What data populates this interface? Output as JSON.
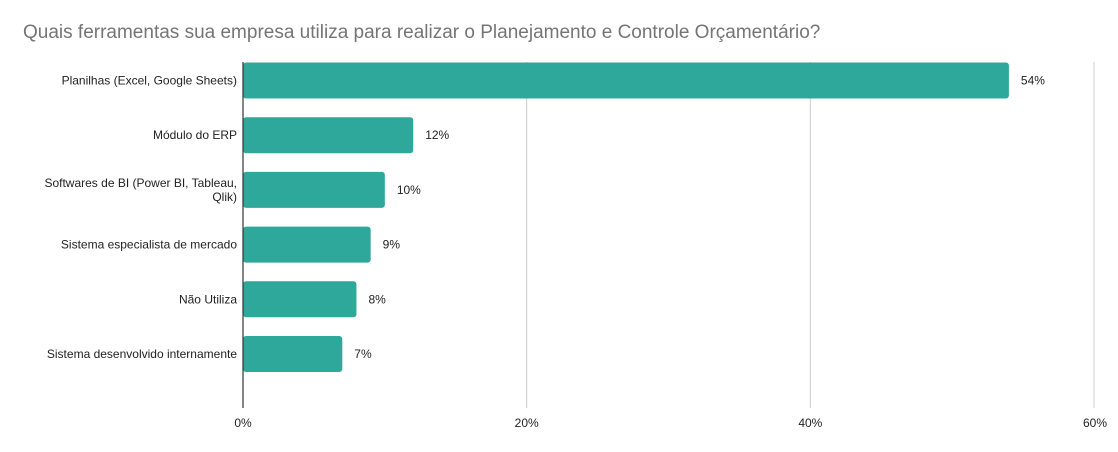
{
  "chart_data": {
    "type": "bar",
    "orientation": "horizontal",
    "title": "Quais ferramentas sua empresa utiliza para realizar o Planejamento e Controle Orçamentário?",
    "categories": [
      [
        "Planilhas (Excel, Google Sheets)"
      ],
      [
        "Módulo do ERP"
      ],
      [
        "Softwares de BI (Power BI, Tableau,",
        "Qlik)"
      ],
      [
        "Sistema especialista de mercado"
      ],
      [
        "Não Utiliza"
      ],
      [
        "Sistema desenvolvido internamente"
      ]
    ],
    "values": [
      54,
      12,
      10,
      9,
      8,
      7
    ],
    "data_labels": [
      "54%",
      "12%",
      "10%",
      "9%",
      "8%",
      "7%"
    ],
    "xlim": [
      0,
      60
    ],
    "x_ticks": [
      0,
      20,
      40,
      60
    ],
    "x_tick_labels": [
      "0%",
      "20%",
      "40%",
      "60%"
    ],
    "grid": true,
    "legend": "none",
    "colors": {
      "bar": "#2ea89a",
      "grid": "#cccccc",
      "axis": "#333333",
      "title": "#757575",
      "text": "#222222"
    }
  }
}
